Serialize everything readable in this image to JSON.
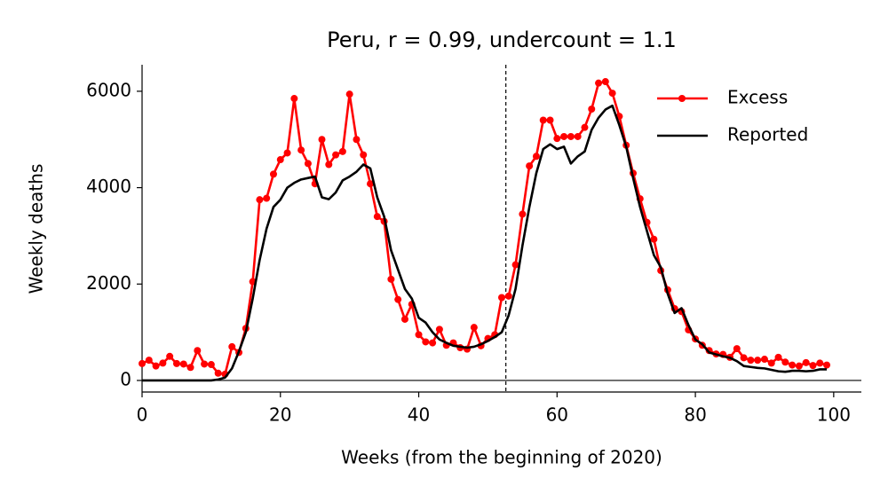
{
  "chart_data": {
    "type": "line",
    "title": "Peru, r = 0.99, undercount = 1.1",
    "xlabel": "Weeks (from the beginning of 2020)",
    "ylabel": "Weekly deaths",
    "x": [
      0,
      1,
      2,
      3,
      4,
      5,
      6,
      7,
      8,
      9,
      10,
      11,
      12,
      13,
      14,
      15,
      16,
      17,
      18,
      19,
      20,
      21,
      22,
      23,
      24,
      25,
      26,
      27,
      28,
      29,
      30,
      31,
      32,
      33,
      34,
      35,
      36,
      37,
      38,
      39,
      40,
      41,
      42,
      43,
      44,
      45,
      46,
      47,
      48,
      49,
      50,
      51,
      52,
      53,
      54,
      55,
      56,
      57,
      58,
      59,
      60,
      61,
      62,
      63,
      64,
      65,
      66,
      67,
      68,
      69,
      70,
      71,
      72,
      73,
      74,
      75,
      76,
      77,
      78,
      79,
      80,
      81,
      82,
      83,
      84,
      85,
      86,
      87,
      88,
      89,
      90,
      91,
      92,
      93,
      94,
      95,
      96,
      97,
      98,
      99
    ],
    "series": [
      {
        "name": "Excess",
        "color": "#ff0000",
        "markers": true,
        "values": [
          350,
          420,
          300,
          360,
          500,
          350,
          340,
          270,
          620,
          340,
          330,
          150,
          130,
          700,
          580,
          1080,
          2050,
          3750,
          3780,
          4280,
          4580,
          4720,
          5850,
          4780,
          4500,
          4080,
          5000,
          4480,
          4680,
          4750,
          5940,
          5000,
          4680,
          4080,
          3400,
          3300,
          2100,
          1680,
          1270,
          1580,
          950,
          800,
          780,
          1060,
          730,
          780,
          680,
          650,
          1100,
          720,
          870,
          950,
          1720,
          1750,
          2400,
          3450,
          4450,
          4650,
          5400,
          5400,
          5020,
          5060,
          5060,
          5060,
          5250,
          5630,
          6170,
          6200,
          5960,
          5480,
          4880,
          4300,
          3770,
          3280,
          2930,
          2280,
          1880,
          1490,
          1430,
          1050,
          860,
          730,
          620,
          550,
          540,
          480,
          660,
          470,
          420,
          420,
          440,
          360,
          480,
          380,
          320,
          300,
          370,
          310,
          360,
          320
        ]
      },
      {
        "name": "Reported",
        "color": "#000000",
        "markers": false,
        "values": [
          0,
          0,
          0,
          0,
          0,
          0,
          0,
          0,
          0,
          0,
          0,
          20,
          60,
          250,
          600,
          1000,
          1700,
          2500,
          3150,
          3600,
          3750,
          4000,
          4100,
          4170,
          4200,
          4230,
          3800,
          3760,
          3900,
          4150,
          4230,
          4330,
          4480,
          4400,
          3800,
          3400,
          2700,
          2300,
          1900,
          1700,
          1300,
          1200,
          1000,
          850,
          780,
          720,
          700,
          680,
          700,
          750,
          820,
          900,
          1000,
          1350,
          1900,
          2800,
          3600,
          4300,
          4800,
          4900,
          4800,
          4850,
          4500,
          4650,
          4750,
          5200,
          5450,
          5620,
          5700,
          5300,
          4850,
          4200,
          3600,
          3100,
          2600,
          2350,
          1800,
          1400,
          1500,
          1150,
          850,
          750,
          580,
          540,
          500,
          470,
          400,
          300,
          280,
          260,
          250,
          220,
          190,
          180,
          200,
          200,
          190,
          200,
          230,
          230
        ]
      }
    ],
    "xlim": [
      0,
      104
    ],
    "ylim": [
      -240,
      6550
    ],
    "xticks": [
      0,
      20,
      40,
      60,
      80,
      100
    ],
    "yticks": [
      0,
      2000,
      4000,
      6000
    ],
    "vline_x": 52.6,
    "hline_y": 0,
    "legend": "upper right"
  }
}
